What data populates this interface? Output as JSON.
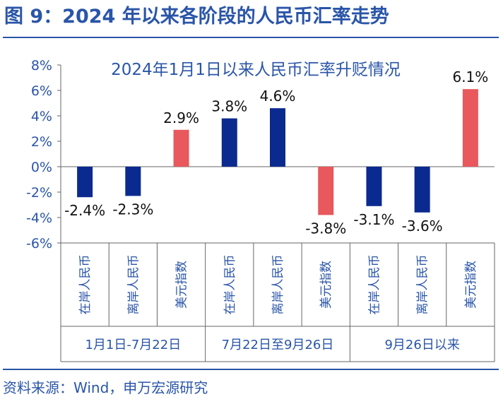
{
  "figure_title": "图 9：2024 年以来各阶段的人民币汇率走势",
  "source": "资料来源：Wind，申万宏源研究",
  "colors": {
    "cny": "#0b2a8f",
    "usd_index": "#e8585c",
    "brand": "#2a55a8"
  },
  "chart_data": {
    "type": "bar",
    "title": "2024年1月1日以来人民币汇率升贬情况",
    "ylim": [
      -6,
      8
    ],
    "yticks": [
      "8%",
      "6%",
      "4%",
      "2%",
      "0%",
      "-2%",
      "-4%",
      "-6%"
    ],
    "categories": [
      "在岸人民币",
      "离岸人民币",
      "美元指数",
      "在岸人民币",
      "离岸人民币",
      "美元指数",
      "在岸人民币",
      "离岸人民币",
      "美元指数"
    ],
    "values": [
      -2.4,
      -2.3,
      2.9,
      3.8,
      4.6,
      -3.8,
      -3.1,
      -3.6,
      6.1
    ],
    "value_labels": [
      "-2.4%",
      "-2.3%",
      "2.9%",
      "3.8%",
      "4.6%",
      "-3.8%",
      "-3.1%",
      "-3.6%",
      "6.1%"
    ],
    "groups": [
      "1月1日-7月22日",
      "7月22日至9月26日",
      "9月26日以来"
    ],
    "grid": false,
    "legend": "none"
  }
}
